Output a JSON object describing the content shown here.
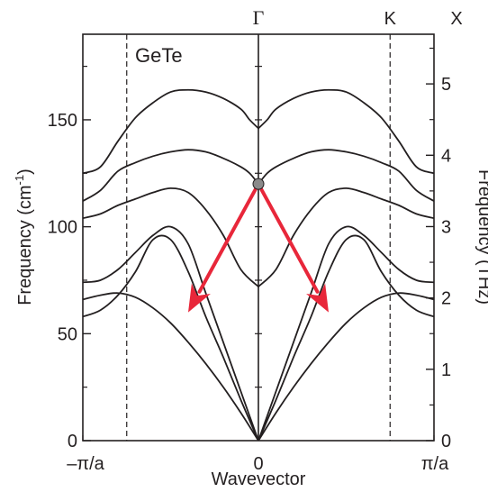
{
  "chart_data": {
    "type": "line",
    "material_label": "GeTe",
    "xlabel": "Wavevector",
    "ylabel_left": "Frequency (cm",
    "ylabel_left_sup": "-1",
    "ylabel_left_close": ")",
    "ylabel_right": "Frequency (THz)",
    "x_tick_labels": {
      "left": "–π/a",
      "center": "0",
      "right": "π/a"
    },
    "y_left": {
      "ticks": [
        0,
        50,
        100,
        150
      ],
      "ylim": [
        0,
        190
      ]
    },
    "y_right": {
      "ticks": [
        0,
        1,
        2,
        3,
        4,
        5
      ],
      "ylim": [
        0,
        5.696
      ]
    },
    "xlim": [
      -1,
      1
    ],
    "high_symmetry_points": [
      {
        "label": "Γ",
        "x": 0,
        "line": "solid"
      },
      {
        "label": "K",
        "x": 0.75,
        "line": "dashed"
      },
      {
        "label": "X",
        "x": 1.0,
        "line": "none"
      }
    ],
    "dashed_lines_x": [
      -0.75,
      0.75
    ],
    "series": [
      {
        "x": [
          0,
          0.1,
          0.2,
          0.3,
          0.4,
          0.5,
          0.6,
          0.7,
          0.8,
          0.9,
          1.0
        ],
        "values": [
          0,
          13,
          25,
          36,
          46,
          55,
          62,
          67,
          69,
          68,
          66
        ]
      },
      {
        "x": [
          0,
          0.1,
          0.2,
          0.3,
          0.4,
          0.5,
          0.6,
          0.7,
          0.8,
          0.9,
          1.0
        ],
        "values": [
          0,
          19,
          39,
          58,
          79,
          94,
          94,
          79,
          68,
          61,
          58
        ]
      },
      {
        "x": [
          0,
          0.1,
          0.2,
          0.3,
          0.4,
          0.5,
          0.6,
          0.7,
          0.8,
          0.9,
          1.0
        ],
        "values": [
          0,
          23,
          46,
          69,
          92,
          100,
          96,
          88,
          80,
          75,
          74
        ]
      },
      {
        "x": [
          0,
          0.1,
          0.2,
          0.3,
          0.4,
          0.5,
          0.6,
          0.7,
          0.8,
          0.9,
          1.0
        ],
        "values": [
          72,
          80,
          96,
          108,
          116,
          118,
          116,
          113,
          110,
          106,
          104
        ]
      },
      {
        "x": [
          0,
          0.05,
          0.1,
          0.2,
          0.3,
          0.4,
          0.5,
          0.6,
          0.7,
          0.8,
          0.9,
          1.0
        ],
        "values": [
          120,
          125,
          128,
          132,
          135,
          136,
          135,
          133,
          130,
          126,
          117,
          112
        ]
      },
      {
        "x": [
          0,
          0.05,
          0.1,
          0.2,
          0.3,
          0.4,
          0.5,
          0.6,
          0.7,
          0.8,
          0.9,
          1.0
        ],
        "values": [
          146,
          150,
          155,
          160,
          163,
          164,
          163,
          158,
          151,
          140,
          128,
          125
        ]
      }
    ],
    "marker": {
      "x": 0,
      "y": 120,
      "color": "#8a8a8a"
    },
    "arrows": [
      {
        "from": [
          0,
          120
        ],
        "to": [
          -0.4,
          60
        ],
        "color": "#e8273a"
      },
      {
        "from": [
          0,
          120
        ],
        "to": [
          0.4,
          60
        ],
        "color": "#e8273a"
      }
    ],
    "grid": false,
    "legend": "none"
  }
}
